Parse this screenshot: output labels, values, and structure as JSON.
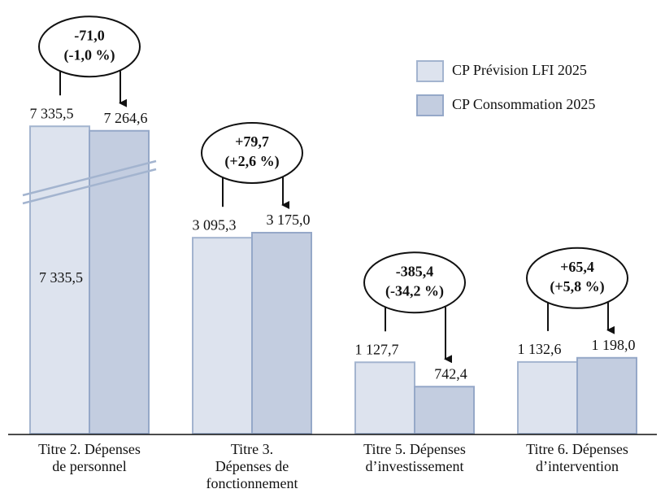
{
  "chart_data": {
    "type": "bar",
    "categories": [
      "Titre 2. Dépenses\nde personnel",
      "Titre 3.\nDépenses de\nfonctionnement",
      "Titre 5. Dépenses\nd’investissement",
      "Titre 6. Dépenses\nd’intervention"
    ],
    "series": [
      {
        "name": "CP Prévision LFI 2025",
        "color": "#dde3ee",
        "values": [
          7335.5,
          3095.3,
          1127.7,
          1132.6
        ],
        "value_labels": [
          "7 335,5",
          "3 095,3",
          "1 127,7",
          "1 132,6"
        ]
      },
      {
        "name": "CP Consommation 2025",
        "color": "#c3cde0",
        "values": [
          7264.6,
          3175.0,
          742.4,
          1198.0
        ],
        "value_labels": [
          "7 264,6",
          "3 175,0",
          "742,4",
          "1 198,0"
        ]
      }
    ],
    "annotations": [
      {
        "change": "-71,0",
        "pct": "(-1,0 %)"
      },
      {
        "change": "+79,7",
        "pct": "(+2,6 %)"
      },
      {
        "change": "-385,4",
        "pct": "(-34,2 %)"
      },
      {
        "change": "+65,4",
        "pct": "(+5,8 %)"
      }
    ],
    "inner_label": "7 335,5",
    "legend": "top-right"
  }
}
